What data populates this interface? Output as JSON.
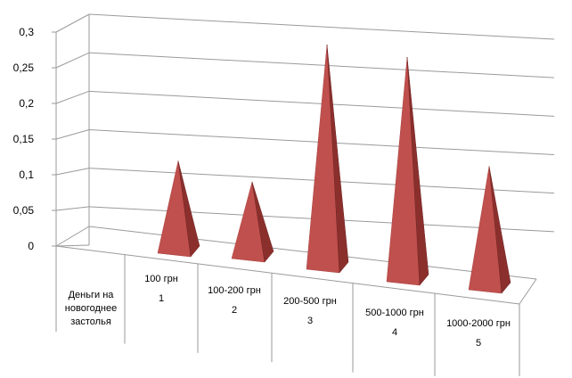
{
  "chart_data": {
    "type": "bar",
    "style": "3d-pyramid",
    "ylim": [
      0,
      0.3
    ],
    "y_ticks": [
      "0",
      "0,05",
      "0,1",
      "0,15",
      "0,2",
      "0,25",
      "0,3"
    ],
    "row_header": [
      "Деньги на",
      "новогоднее",
      "застолья"
    ],
    "categories": [
      {
        "label": "100 грн",
        "index": "1"
      },
      {
        "label": "100-200 грн",
        "index": "2"
      },
      {
        "label": "200-500 грн",
        "index": "3"
      },
      {
        "label": "500-1000 грн",
        "index": "4"
      },
      {
        "label": "1000-2000 грн",
        "index": "5"
      }
    ],
    "values": [
      0.13,
      0.11,
      0.3,
      0.3,
      0.17
    ],
    "grid": true,
    "colors": {
      "bar_front": "#c0504d",
      "bar_side": "#8b2f2d",
      "grid": "#9a9a9a"
    }
  }
}
